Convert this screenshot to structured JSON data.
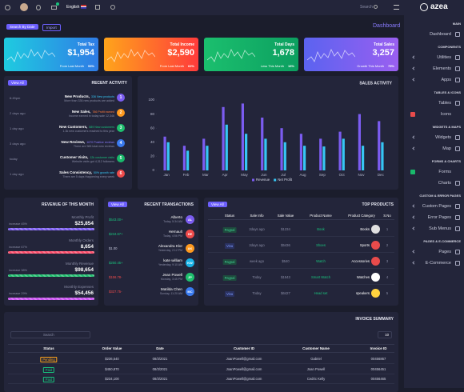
{
  "header": {
    "language": "English",
    "search": "Search",
    "brand": "azea"
  },
  "sidebar": {
    "sections": [
      {
        "title": "MAIN",
        "items": [
          "Dashboard"
        ]
      },
      {
        "title": "COMPONENTS",
        "items": [
          "Utilities",
          "Elements",
          "Apps"
        ]
      },
      {
        "title": "TABLES & ICONS",
        "items": [
          "Tables",
          "Icons"
        ]
      },
      {
        "title": "WIDGETS & MAPS",
        "items": [
          "Widgets",
          "Map"
        ]
      },
      {
        "title": "FORMS & CHARTS",
        "items": [
          "Forms",
          "Charts"
        ]
      },
      {
        "title": "CUSTOM & ERROR PAGES",
        "items": [
          "Custom Pages",
          "Error Pages",
          "Sub Menus"
        ]
      },
      {
        "title": "PAGES & E-COMMERCE",
        "items": [
          "Pages",
          "E-Commerce"
        ]
      }
    ]
  },
  "toolbar": {
    "search_by_date": "Search By Date",
    "import": "Import",
    "page_title": "Dashboard"
  },
  "stats": [
    {
      "title": "Total Tax",
      "value": "$1,954",
      "note": "From Last Month",
      "change": "53%"
    },
    {
      "title": "Total Income",
      "value": "$2,590",
      "note": "From Last Month",
      "change": "62%"
    },
    {
      "title": "Total Days",
      "value": "1,678",
      "note": "Less This Month",
      "change": "16%"
    },
    {
      "title": "Total Sales",
      "value": "3,257",
      "note": "Growth This Month",
      "change": "75%"
    }
  ],
  "recent_activity": {
    "button": "View All",
    "title": "RECENT ACTIVITY",
    "items": [
      {
        "time": "6:45pm",
        "title": "New Products,",
        "highlight": "336 New products",
        "text": "More than 336 new products are added",
        "number": 1
      },
      {
        "time": "2 days ago",
        "title": "New Sales,",
        "highlight": "786 Profit earned",
        "text": "Income earned in today sale 12,346",
        "number": 2
      },
      {
        "time": "1 day ago",
        "title": "New Customers,",
        "highlight": "589 New customers",
        "text": "1.3k new customers reached to this year",
        "number": 3
      },
      {
        "time": "3 days ago",
        "title": "New Reviews,",
        "highlight": "1670 Positive reviews",
        "text": "There are 565 total new reviews",
        "number": 4
      },
      {
        "time": "today",
        "title": "Customer Visits,",
        "highlight": "12k customer visits",
        "text": "Website visits got 4,312 followers",
        "number": 5
      },
      {
        "time": "1 day ago",
        "title": "Sales Consistency,",
        "highlight": "50% growth rate",
        "text": "There are 5 days Happening every week",
        "number": 6
      }
    ]
  },
  "chart_data": {
    "type": "bar",
    "title": "SALES ACTIVITY",
    "categories": [
      "Jan",
      "Feb",
      "Mar",
      "Apr",
      "May",
      "Jun",
      "Jul",
      "Aug",
      "Sep",
      "Oct",
      "Nov",
      "Dec"
    ],
    "series": [
      {
        "name": "Revenue",
        "color": "#7b5cf0",
        "values": [
          48,
          35,
          45,
          90,
          95,
          75,
          60,
          52,
          45,
          55,
          80,
          70
        ]
      },
      {
        "name": "Net Profit",
        "color": "#36c6f4",
        "values": [
          40,
          28,
          35,
          65,
          52,
          45,
          40,
          35,
          34,
          45,
          35,
          40
        ]
      }
    ],
    "ylim": [
      0,
      100
    ],
    "yticks": [
      0,
      20,
      40,
      60,
      80,
      100
    ],
    "legend": "bottom"
  },
  "revenue": {
    "title": "REVENUE OF THIS MONTH",
    "items": [
      {
        "label": "Monthly Profit",
        "value": "$25,854",
        "change": "increase 45%"
      },
      {
        "label": "Monthly Orders",
        "value": "8,654",
        "change": "increase 67%"
      },
      {
        "label": "Monthly Revenue",
        "value": "$98,654",
        "change": "increase 38%"
      },
      {
        "label": "Monthly Expenses",
        "value": "$54,456",
        "change": "increase 29%"
      }
    ]
  },
  "transactions": {
    "button": "View All",
    "title": "RECENT TRANSACTIONS",
    "items": [
      {
        "amount": "$543.00+",
        "name": "Alberto",
        "time": "Today, 5:34 AM",
        "initials": "AL"
      },
      {
        "amount": "$234.67+",
        "name": "Hernault",
        "time": "Today, 4:56 PM",
        "initials": "HE"
      },
      {
        "amount": "$1.00",
        "name": "Alexandra Klor",
        "time": "Yesterday, 2:12 PM",
        "initials": "AK"
      },
      {
        "amount": "$250.45+",
        "name": "kate william",
        "time": "Yesterday, 9:10 AM",
        "initials": "KW"
      },
      {
        "amount": "$156.78-",
        "name": "Jean Powell",
        "time": "Monday, 3:45 PM",
        "initials": "JP"
      },
      {
        "amount": "$327.75-",
        "name": "Matilda Chen",
        "time": "Sunday, 11:20 AM",
        "initials": "MC"
      }
    ]
  },
  "top_products": {
    "button": "View All",
    "title": "TOP PRODUCTS",
    "columns": [
      "Status",
      "Sale Info",
      "Sale Value",
      "Product Name",
      "Product Category",
      "S.No"
    ],
    "rows": [
      [
        "Paypal",
        "2days ago",
        "$1234",
        "Book",
        "Books",
        1
      ],
      [
        "Visa",
        "2days ago",
        "$5436",
        "Shoes",
        "Sports",
        2
      ],
      [
        "Paypal",
        "week ago",
        "$540",
        "Watch",
        "Accessories",
        3
      ],
      [
        "Paypal",
        "Today",
        "$1543",
        "Smart Watch",
        "Watches",
        4
      ],
      [
        "Visa",
        "Today",
        "$6427",
        "Head set",
        "speakers",
        5
      ]
    ]
  },
  "invoice": {
    "title": "INVOICE SUMMARY",
    "search": "Search",
    "page_size": 10,
    "columns": [
      "Status",
      "Order Value",
      "Date",
      "Customer ID",
      "Customer Name",
      "Invoice ID"
    ],
    "rows": [
      [
        "Pending",
        "$236,540",
        "08/3/2021",
        "JoanPowell@gmail.com",
        "Gabriel",
        "00456867"
      ],
      [
        "Paid",
        "$450,870",
        "08/3/2021",
        "JoanPowell@gmail.com",
        "Joan Powell",
        "00456451"
      ],
      [
        "Paid",
        "$234,100",
        "08/3/2021",
        "JoanPowell@gmail.com",
        "Cedric Kelly",
        "00456465"
      ]
    ]
  }
}
